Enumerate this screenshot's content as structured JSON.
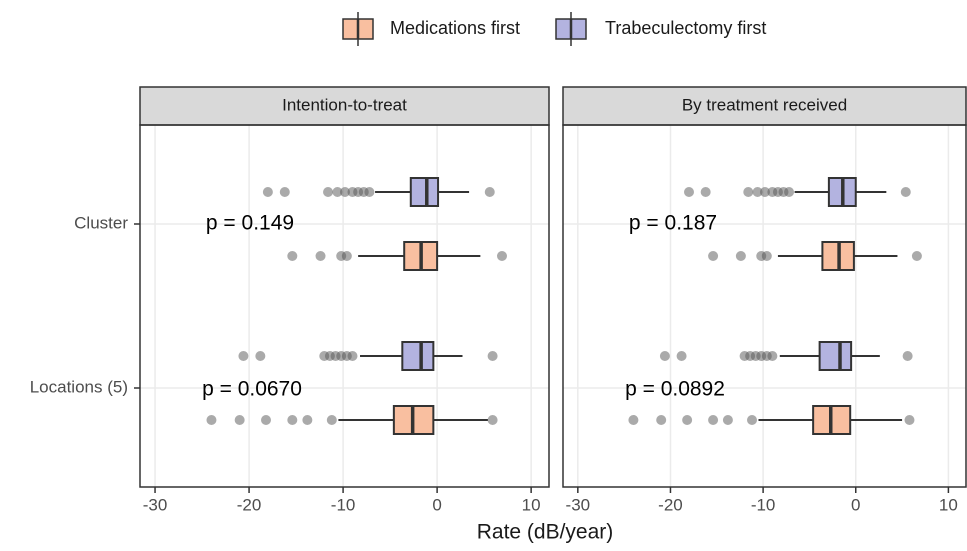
{
  "chart_data": {
    "type": "boxplot",
    "x_label": "Rate (dB/year)",
    "categories": [
      "Cluster",
      "Locations (5)"
    ],
    "series": [
      {
        "name": "Medications first",
        "color": "#f9bfa0"
      },
      {
        "name": "Trabeculectomy first",
        "color": "#b3b3e0"
      }
    ],
    "xlim": [
      -31.6,
      11.9
    ],
    "xticks": [
      -30,
      -20,
      -10,
      0,
      10
    ],
    "grid": true,
    "facets": [
      {
        "title": "Intention-to-treat",
        "annotations": [
          "p = 0.149",
          "p = 0.0670"
        ],
        "boxes": [
          [
            {
              "whislo": -8.4,
              "q1": -3.5,
              "median": -1.7,
              "q3": 0.0,
              "whishi": 4.6,
              "outliers": [
                -15.4,
                -12.4,
                -10.2,
                -9.6,
                6.9
              ]
            },
            {
              "whislo": -6.6,
              "q1": -2.8,
              "median": -1.1,
              "q3": 0.1,
              "whishi": 3.4,
              "outliers": [
                -18.0,
                -16.2,
                -11.6,
                -10.6,
                -9.8,
                -9.0,
                -8.4,
                -7.8,
                -7.2,
                5.6
              ]
            }
          ],
          [
            {
              "whislo": -10.5,
              "q1": -4.6,
              "median": -2.6,
              "q3": -0.4,
              "whishi": 5.4,
              "outliers": [
                -24.0,
                -21.0,
                -18.2,
                -15.4,
                -13.8,
                -11.2,
                5.9
              ]
            },
            {
              "whislo": -8.2,
              "q1": -3.7,
              "median": -1.7,
              "q3": -0.4,
              "whishi": 2.7,
              "outliers": [
                -20.6,
                -18.8,
                -12.0,
                -11.4,
                -10.8,
                -10.2,
                -9.6,
                -9.0,
                5.9
              ]
            }
          ]
        ]
      },
      {
        "title": "By treatment received",
        "annotations": [
          "p = 0.187",
          "p = 0.0892"
        ],
        "boxes": [
          [
            {
              "whislo": -8.4,
              "q1": -3.6,
              "median": -1.8,
              "q3": -0.2,
              "whishi": 4.5,
              "outliers": [
                -15.4,
                -12.4,
                -10.2,
                -9.6,
                6.6
              ]
            },
            {
              "whislo": -6.6,
              "q1": -2.9,
              "median": -1.4,
              "q3": 0.0,
              "whishi": 3.3,
              "outliers": [
                -18.0,
                -16.2,
                -11.6,
                -10.6,
                -9.8,
                -9.0,
                -8.4,
                -7.8,
                -7.2,
                5.4
              ]
            }
          ],
          [
            {
              "whislo": -10.5,
              "q1": -4.6,
              "median": -2.7,
              "q3": -0.6,
              "whishi": 5.0,
              "outliers": [
                -24.0,
                -21.0,
                -18.2,
                -15.4,
                -13.8,
                -11.2,
                5.8
              ]
            },
            {
              "whislo": -8.2,
              "q1": -3.9,
              "median": -1.7,
              "q3": -0.5,
              "whishi": 2.6,
              "outliers": [
                -20.6,
                -18.8,
                -12.0,
                -11.4,
                -10.8,
                -10.2,
                -9.6,
                -9.0,
                5.6
              ]
            }
          ]
        ]
      }
    ]
  }
}
